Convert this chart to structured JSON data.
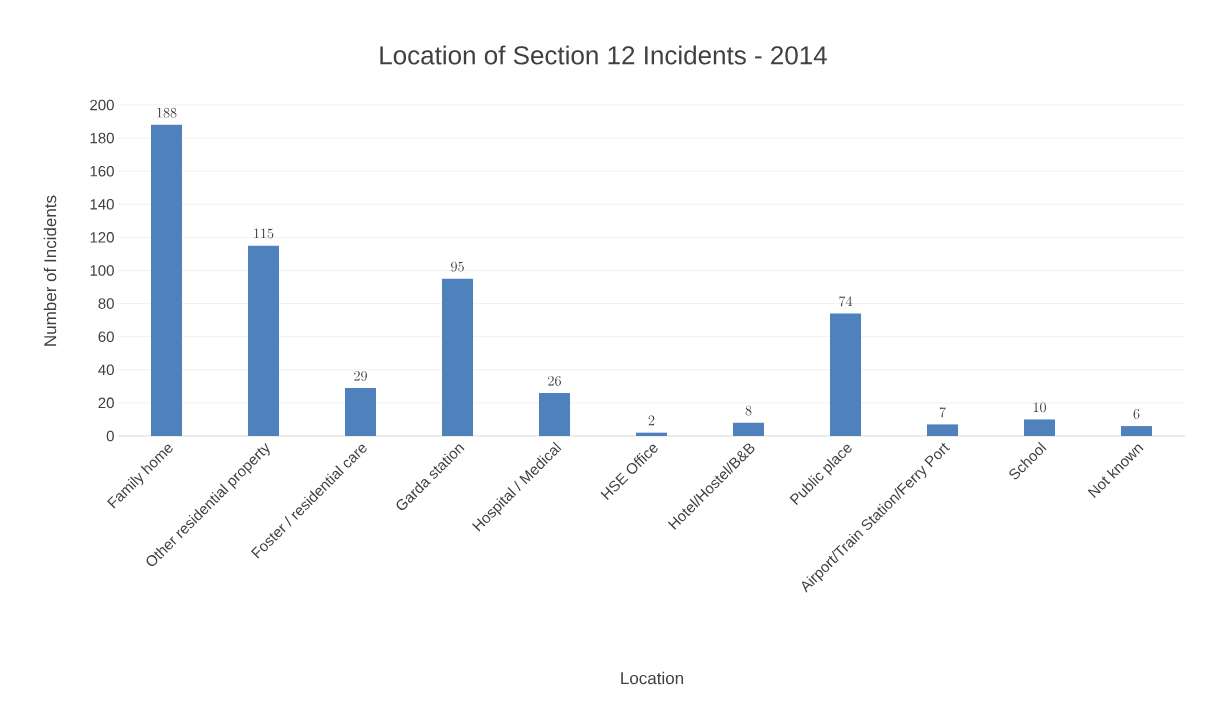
{
  "chart_data": {
    "type": "bar",
    "title": "Location of Section 12 Incidents - 2014",
    "xlabel": "Location",
    "ylabel": "Number  of Incidents",
    "categories": [
      "Family home",
      "Other residential property",
      "Foster / residential care",
      "Garda station",
      "Hospital / Medical",
      "HSE Office",
      "Hotel/Hostel/B&B",
      "Public place",
      "Airport/Train Station/Ferry Port",
      "School",
      "Not known"
    ],
    "values": [
      188,
      115,
      29,
      95,
      26,
      2,
      8,
      74,
      7,
      10,
      6
    ],
    "color": "#4f81bd",
    "ylim": [
      0,
      200
    ],
    "yticks": [
      0,
      20,
      40,
      60,
      80,
      100,
      120,
      140,
      160,
      180,
      200
    ],
    "grid": "y",
    "data_labels": true
  }
}
